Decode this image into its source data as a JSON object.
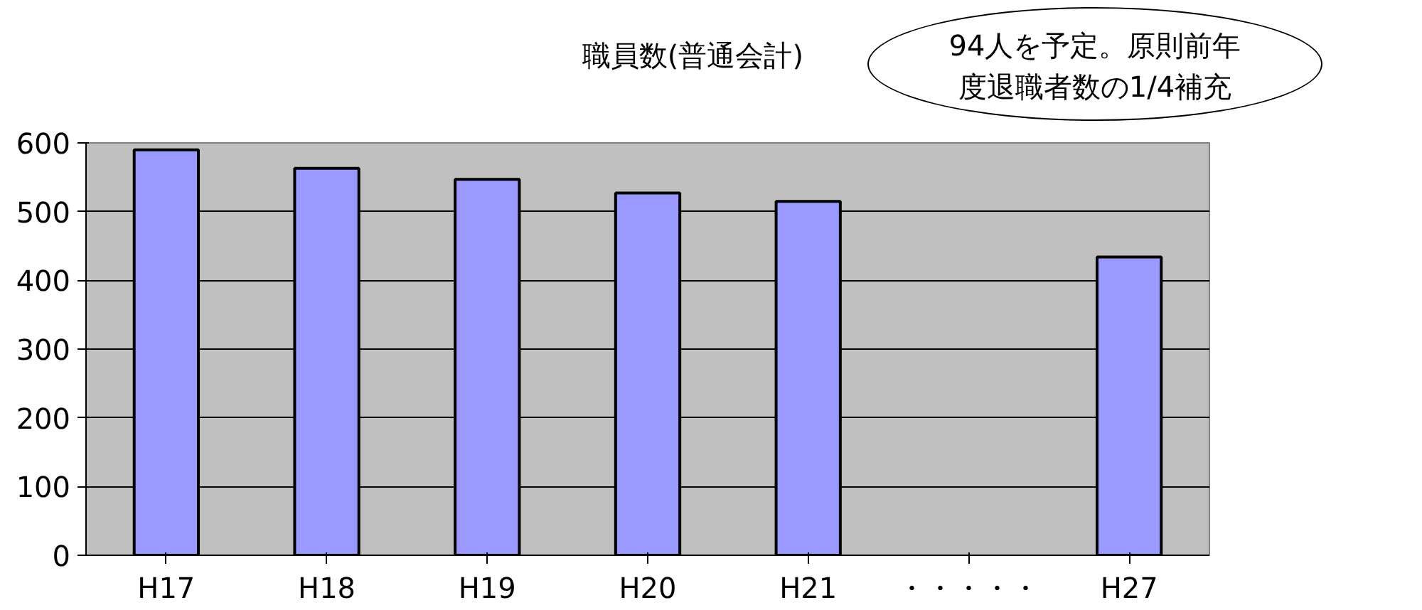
{
  "chart_data": {
    "type": "bar",
    "title": "職員数(普通会計)",
    "categories": [
      "H17",
      "H18",
      "H19",
      "H20",
      "H21",
      "・・・・・",
      "H27"
    ],
    "values": [
      590,
      563,
      547,
      527,
      515,
      null,
      434
    ],
    "colors": [
      "#9999ff",
      "#9999ff",
      "#9999ff",
      "#9999ff",
      "#9999ff",
      "#9999ff",
      "#9999ff"
    ],
    "ylim": [
      0,
      600
    ],
    "yticks": [
      0,
      100,
      200,
      300,
      400,
      500,
      600
    ],
    "grid": "y",
    "annotations": [
      "94人を予定。原則前年度退職者数の1/4補充"
    ]
  }
}
